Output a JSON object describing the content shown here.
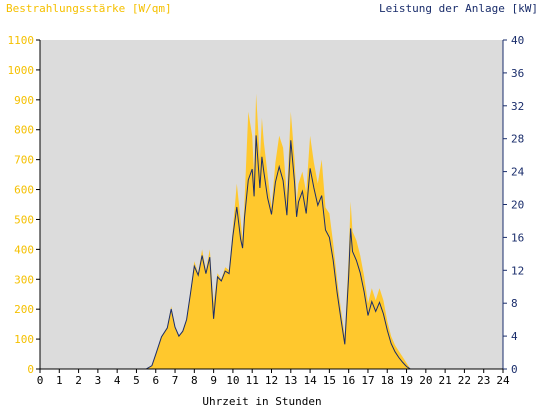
{
  "chart_data": {
    "type": "area",
    "left_axis_title": "Bestrahlungsstärke [W/qm]",
    "right_axis_title": "Leistung der Anlage [kW]",
    "xlabel": "Uhrzeit in Stunden",
    "xlim": [
      0,
      24
    ],
    "ylim_left": [
      0,
      1100
    ],
    "ylim_right": [
      0,
      40
    ],
    "x_ticks": [
      "0",
      "1",
      "2",
      "3",
      "4",
      "5",
      "6",
      "7",
      "8",
      "9",
      "10",
      "11",
      "12",
      "13",
      "14",
      "15",
      "16",
      "17",
      "18",
      "19",
      "20",
      "21",
      "22",
      "23",
      "24"
    ],
    "y_ticks_left": [
      "0",
      "100",
      "200",
      "300",
      "400",
      "500",
      "600",
      "700",
      "800",
      "900",
      "1000",
      "1100"
    ],
    "y_ticks_right": [
      "0",
      "4",
      "8",
      "12",
      "16",
      "20",
      "24",
      "28",
      "32",
      "36",
      "40"
    ],
    "colors": {
      "irradiance_fill": "#ffc82d",
      "power_line": "#1a2d6b",
      "plot_bg": "#dcdcdc",
      "left_text": "#f5c000",
      "right_text": "#1a2d6b"
    },
    "series": [
      {
        "name": "Bestrahlungsstärke [W/qm]",
        "axis": "left",
        "style": "area",
        "x": [
          0,
          5.5,
          5.8,
          6.0,
          6.3,
          6.6,
          6.8,
          7.0,
          7.2,
          7.4,
          7.6,
          7.8,
          8.0,
          8.2,
          8.4,
          8.6,
          8.8,
          9.0,
          9.2,
          9.4,
          9.6,
          9.8,
          10.0,
          10.2,
          10.4,
          10.5,
          10.6,
          10.8,
          11.0,
          11.1,
          11.2,
          11.4,
          11.5,
          11.6,
          11.8,
          12.0,
          12.2,
          12.4,
          12.6,
          12.8,
          13.0,
          13.2,
          13.3,
          13.4,
          13.6,
          13.8,
          14.0,
          14.2,
          14.4,
          14.6,
          14.8,
          15.0,
          15.2,
          15.4,
          15.6,
          15.8,
          16.0,
          16.1,
          16.2,
          16.4,
          16.6,
          16.8,
          17.0,
          17.2,
          17.4,
          17.6,
          17.8,
          18.0,
          18.2,
          18.4,
          18.6,
          18.8,
          19.0,
          19.2,
          19.5,
          19.8,
          20.0,
          24
        ],
        "y": [
          0,
          0,
          10,
          50,
          110,
          140,
          210,
          140,
          110,
          130,
          170,
          260,
          360,
          320,
          400,
          330,
          400,
          220,
          320,
          300,
          340,
          330,
          470,
          620,
          500,
          430,
          560,
          860,
          780,
          650,
          920,
          700,
          840,
          760,
          650,
          540,
          690,
          780,
          740,
          580,
          860,
          700,
          560,
          620,
          660,
          590,
          780,
          690,
          620,
          700,
          540,
          520,
          420,
          300,
          200,
          110,
          380,
          560,
          460,
          430,
          380,
          310,
          220,
          270,
          230,
          270,
          230,
          160,
          110,
          80,
          60,
          40,
          20,
          0,
          0,
          0,
          0,
          0
        ]
      },
      {
        "name": "Leistung der Anlage [kW]",
        "axis": "right",
        "style": "line",
        "x": [
          0,
          5.5,
          5.8,
          6.0,
          6.3,
          6.6,
          6.8,
          7.0,
          7.2,
          7.4,
          7.6,
          7.8,
          8.0,
          8.2,
          8.4,
          8.6,
          8.8,
          9.0,
          9.2,
          9.4,
          9.6,
          9.8,
          10.0,
          10.2,
          10.4,
          10.5,
          10.6,
          10.8,
          11.0,
          11.1,
          11.2,
          11.4,
          11.5,
          11.6,
          11.8,
          12.0,
          12.2,
          12.4,
          12.6,
          12.8,
          13.0,
          13.2,
          13.3,
          13.4,
          13.6,
          13.8,
          14.0,
          14.2,
          14.4,
          14.6,
          14.8,
          15.0,
          15.2,
          15.4,
          15.6,
          15.8,
          16.0,
          16.1,
          16.2,
          16.4,
          16.6,
          16.8,
          17.0,
          17.2,
          17.4,
          17.6,
          17.8,
          18.0,
          18.2,
          18.4,
          18.6,
          18.8,
          19.0,
          19.2,
          19.5,
          19.8,
          20.0,
          24
        ],
        "y": [
          0,
          0,
          0.4,
          1.8,
          3.9,
          5.0,
          7.3,
          5.1,
          4.0,
          4.6,
          6.0,
          9.2,
          12.5,
          11.4,
          13.8,
          11.6,
          13.6,
          6.1,
          11.2,
          10.7,
          11.9,
          11.6,
          16.2,
          19.7,
          15.8,
          14.7,
          18.4,
          23.0,
          24.3,
          21.0,
          28.4,
          22.0,
          25.8,
          24.0,
          20.8,
          18.8,
          22.7,
          24.6,
          22.9,
          18.7,
          27.8,
          22.6,
          18.5,
          20.3,
          21.6,
          18.9,
          24.4,
          22.0,
          19.9,
          21.1,
          16.9,
          16.0,
          13.2,
          9.3,
          6.1,
          3.0,
          11.4,
          17.1,
          14.3,
          13.2,
          11.7,
          9.4,
          6.5,
          8.2,
          7.0,
          8.1,
          6.7,
          4.7,
          3.1,
          2.1,
          1.4,
          0.8,
          0.3,
          0,
          0,
          0,
          0,
          0
        ]
      }
    ]
  }
}
